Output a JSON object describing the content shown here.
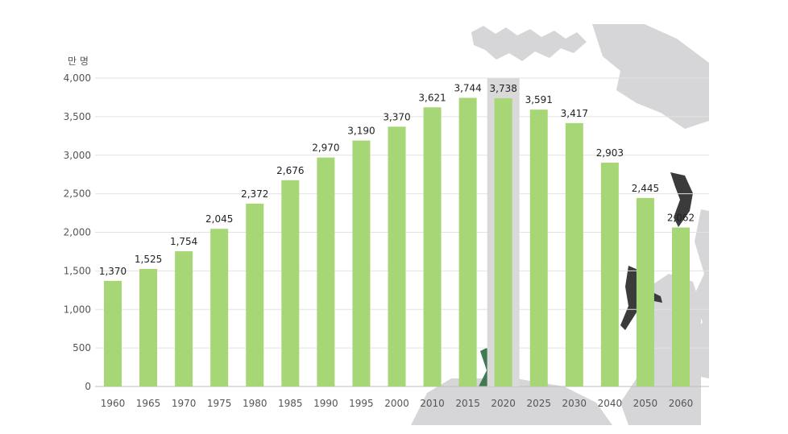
{
  "chart_data": {
    "type": "bar",
    "unit_label": "만 명",
    "categories": [
      "1960",
      "1965",
      "1970",
      "1975",
      "1980",
      "1985",
      "1990",
      "1995",
      "2000",
      "2010",
      "2015",
      "2020",
      "2025",
      "2030",
      "2040",
      "2050",
      "2060"
    ],
    "values": [
      1370,
      1525,
      1754,
      2045,
      2372,
      2676,
      2970,
      3190,
      3370,
      3621,
      3744,
      3738,
      3591,
      3417,
      2903,
      2445,
      2062
    ],
    "value_labels": [
      "1,370",
      "1,525",
      "1,754",
      "2,045",
      "2,372",
      "2,676",
      "2,970",
      "3,190",
      "3,370",
      "3,621",
      "3,744",
      "3,738",
      "3,591",
      "3,417",
      "2,903",
      "2,445",
      "2,062"
    ],
    "ylim": [
      0,
      4000
    ],
    "yticks": [
      0,
      500,
      1000,
      1500,
      2000,
      2500,
      3000,
      3500,
      4000
    ],
    "ytick_labels": [
      "0",
      "500",
      "1,000",
      "1,500",
      "2,000",
      "2,500",
      "3,000",
      "3,500",
      "4,000"
    ],
    "highlight_category": "2020",
    "current_category": "2025",
    "grid": true,
    "colors": {
      "bar": "#a6d676",
      "highlight_band": "#d9d9d9",
      "current_label": "#0b2a9e",
      "tick_label": "#555555",
      "value_label": "#222222",
      "background_art": "#d6d6d8"
    }
  }
}
